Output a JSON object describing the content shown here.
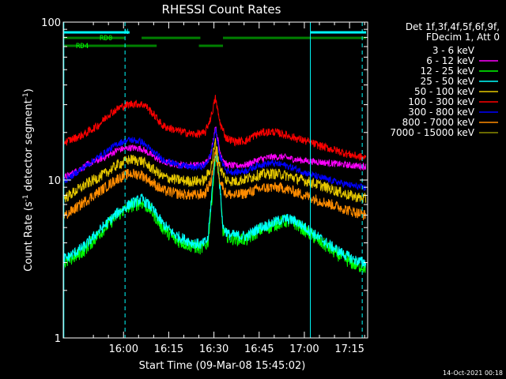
{
  "chart_data": {
    "type": "line",
    "title": "RHESSI Count Rates",
    "xlabel": "Start Time (09-Mar-08 15:45:02)",
    "ylabel_main": "Count Rate (s",
    "ylabel_exp1": "-1",
    "ylabel_mid": " detector segment",
    "ylabel_exp2": "-1",
    "ylabel_end": ")",
    "xlim": [
      -5.0,
      96.0
    ],
    "ylim": [
      1,
      100
    ],
    "yscale": "log",
    "grid": false,
    "x_unit": "minutes from 15:45:00",
    "x_ticks": [
      {
        "v": 15,
        "label": "16:00"
      },
      {
        "v": 30,
        "label": "16:15"
      },
      {
        "v": 45,
        "label": "16:30"
      },
      {
        "v": 60,
        "label": "16:45"
      },
      {
        "v": 75,
        "label": "17:00"
      },
      {
        "v": 90,
        "label": "17:15"
      }
    ],
    "y_ticks": [
      {
        "v": 1,
        "label": "1"
      },
      {
        "v": 10,
        "label": "10"
      },
      {
        "v": 100,
        "label": "100"
      }
    ],
    "legend": {
      "placement": "right",
      "header": [
        "Det 1f,3f,4f,5f,6f,9f,",
        "FDecim 1, Att 0"
      ]
    },
    "series": [
      {
        "name": "3 - 6 keV",
        "color": "#000000",
        "jitter": 0.16,
        "points": [
          [
            -4,
            2.3
          ],
          [
            2,
            3.0
          ],
          [
            8,
            4.3
          ],
          [
            13,
            5.6
          ],
          [
            17,
            6.6
          ],
          [
            21,
            7.0
          ],
          [
            24,
            6.3
          ],
          [
            28,
            4.8
          ],
          [
            32,
            3.9
          ],
          [
            38,
            3.6
          ],
          [
            41,
            3.5
          ],
          [
            43,
            3.7
          ],
          [
            44.5,
            8.0
          ],
          [
            45.5,
            14.0
          ],
          [
            46.5,
            11.0
          ],
          [
            48,
            4.5
          ],
          [
            50,
            4.0
          ],
          [
            56,
            3.9
          ],
          [
            58,
            4.2
          ],
          [
            60,
            4.5
          ],
          [
            63,
            4.6
          ],
          [
            66,
            5.0
          ],
          [
            69,
            5.2
          ],
          [
            72,
            5.0
          ],
          [
            76,
            4.4
          ],
          [
            80,
            3.8
          ],
          [
            84,
            3.3
          ],
          [
            88,
            2.9
          ],
          [
            92,
            2.6
          ],
          [
            95,
            2.4
          ]
        ]
      },
      {
        "name": "6 - 12 keV",
        "color": "#ff00ff",
        "jitter": 0.05,
        "points": [
          [
            -4,
            10.5
          ],
          [
            3,
            12.5
          ],
          [
            9,
            14.0
          ],
          [
            13,
            15.5
          ],
          [
            17,
            16.0
          ],
          [
            21,
            15.8
          ],
          [
            24,
            14.5
          ],
          [
            28,
            13.0
          ],
          [
            33,
            12.5
          ],
          [
            38,
            12.4
          ],
          [
            42,
            12.6
          ],
          [
            44,
            14.5
          ],
          [
            45.5,
            22.0
          ],
          [
            47,
            15.0
          ],
          [
            49,
            12.5
          ],
          [
            52,
            12.3
          ],
          [
            56,
            12.5
          ],
          [
            60,
            13.5
          ],
          [
            64,
            14.0
          ],
          [
            68,
            14.0
          ],
          [
            72,
            13.5
          ],
          [
            76,
            13.2
          ],
          [
            80,
            13.0
          ],
          [
            85,
            12.7
          ],
          [
            90,
            12.4
          ],
          [
            95,
            12.2
          ]
        ]
      },
      {
        "name": "12 - 25 keV",
        "color": "#00ff00",
        "jitter": 0.1,
        "points": [
          [
            -4,
            3.0
          ],
          [
            2,
            3.6
          ],
          [
            8,
            4.8
          ],
          [
            13,
            6.0
          ],
          [
            17,
            6.8
          ],
          [
            21,
            7.2
          ],
          [
            24,
            6.5
          ],
          [
            28,
            5.0
          ],
          [
            32,
            4.2
          ],
          [
            38,
            3.8
          ],
          [
            41,
            3.7
          ],
          [
            43,
            4.0
          ],
          [
            44.5,
            8.5
          ],
          [
            45.5,
            14.5
          ],
          [
            46.5,
            11.5
          ],
          [
            48,
            4.8
          ],
          [
            50,
            4.3
          ],
          [
            56,
            4.2
          ],
          [
            58,
            4.5
          ],
          [
            60,
            4.8
          ],
          [
            63,
            5.0
          ],
          [
            66,
            5.3
          ],
          [
            69,
            5.5
          ],
          [
            72,
            5.3
          ],
          [
            76,
            4.7
          ],
          [
            80,
            4.1
          ],
          [
            84,
            3.6
          ],
          [
            88,
            3.2
          ],
          [
            92,
            2.9
          ],
          [
            95,
            2.8
          ]
        ]
      },
      {
        "name": "25 - 50 keV",
        "color": "#00ffff",
        "jitter": 0.08,
        "points": [
          [
            -4,
            3.2
          ],
          [
            2,
            3.8
          ],
          [
            8,
            5.0
          ],
          [
            13,
            6.2
          ],
          [
            17,
            7.0
          ],
          [
            21,
            7.6
          ],
          [
            24,
            6.8
          ],
          [
            28,
            5.3
          ],
          [
            32,
            4.5
          ],
          [
            38,
            4.0
          ],
          [
            41,
            3.9
          ],
          [
            43,
            4.2
          ],
          [
            44.5,
            9.0
          ],
          [
            45.5,
            15.0
          ],
          [
            46.5,
            12.0
          ],
          [
            48,
            5.0
          ],
          [
            50,
            4.5
          ],
          [
            56,
            4.4
          ],
          [
            58,
            4.7
          ],
          [
            60,
            5.0
          ],
          [
            63,
            5.2
          ],
          [
            66,
            5.5
          ],
          [
            69,
            5.7
          ],
          [
            72,
            5.5
          ],
          [
            76,
            4.9
          ],
          [
            80,
            4.3
          ],
          [
            84,
            3.8
          ],
          [
            88,
            3.4
          ],
          [
            92,
            3.1
          ],
          [
            95,
            3.0
          ]
        ]
      },
      {
        "name": "50 - 100 keV",
        "color": "#e6c700",
        "jitter": 0.08,
        "points": [
          [
            -4,
            7.8
          ],
          [
            3,
            9.5
          ],
          [
            9,
            11.0
          ],
          [
            13,
            12.5
          ],
          [
            17,
            13.5
          ],
          [
            21,
            13.2
          ],
          [
            24,
            12.0
          ],
          [
            28,
            10.5
          ],
          [
            33,
            10.0
          ],
          [
            38,
            9.8
          ],
          [
            42,
            10.0
          ],
          [
            44,
            12.0
          ],
          [
            45.5,
            17.5
          ],
          [
            47,
            12.0
          ],
          [
            49,
            10.0
          ],
          [
            52,
            9.8
          ],
          [
            56,
            10.2
          ],
          [
            60,
            10.8
          ],
          [
            64,
            11.0
          ],
          [
            68,
            10.8
          ],
          [
            72,
            10.3
          ],
          [
            76,
            9.8
          ],
          [
            80,
            9.3
          ],
          [
            85,
            8.6
          ],
          [
            90,
            8.0
          ],
          [
            95,
            7.6
          ]
        ]
      },
      {
        "name": "100 - 300 keV",
        "color": "#ff0000",
        "jitter": 0.06,
        "points": [
          [
            -4,
            17.5
          ],
          [
            2,
            19.5
          ],
          [
            7,
            22.5
          ],
          [
            10,
            26.0
          ],
          [
            14,
            29.0
          ],
          [
            18,
            30.5
          ],
          [
            22,
            30.0
          ],
          [
            25,
            26.0
          ],
          [
            28,
            22.0
          ],
          [
            33,
            20.5
          ],
          [
            38,
            19.5
          ],
          [
            42,
            19.8
          ],
          [
            44,
            25.0
          ],
          [
            45.5,
            33.0
          ],
          [
            47,
            23.0
          ],
          [
            49,
            18.5
          ],
          [
            52,
            17.5
          ],
          [
            56,
            17.8
          ],
          [
            58,
            19.0
          ],
          [
            61,
            20.0
          ],
          [
            65,
            20.2
          ],
          [
            68,
            19.5
          ],
          [
            72,
            18.5
          ],
          [
            76,
            17.5
          ],
          [
            80,
            16.5
          ],
          [
            85,
            15.5
          ],
          [
            90,
            14.5
          ],
          [
            95,
            13.8
          ]
        ]
      },
      {
        "name": "300 - 800 keV",
        "color": "#0000ff",
        "jitter": 0.05,
        "points": [
          [
            -4,
            10.0
          ],
          [
            3,
            12.5
          ],
          [
            9,
            15.0
          ],
          [
            13,
            17.0
          ],
          [
            17,
            18.0
          ],
          [
            21,
            17.5
          ],
          [
            24,
            15.5
          ],
          [
            28,
            13.5
          ],
          [
            33,
            12.5
          ],
          [
            38,
            12.0
          ],
          [
            42,
            12.3
          ],
          [
            44,
            14.5
          ],
          [
            45.5,
            21.0
          ],
          [
            47,
            14.0
          ],
          [
            49,
            11.5
          ],
          [
            52,
            11.2
          ],
          [
            56,
            11.5
          ],
          [
            60,
            12.5
          ],
          [
            64,
            12.8
          ],
          [
            68,
            12.5
          ],
          [
            72,
            11.8
          ],
          [
            76,
            11.0
          ],
          [
            80,
            10.4
          ],
          [
            85,
            9.8
          ],
          [
            90,
            9.3
          ],
          [
            95,
            8.9
          ]
        ]
      },
      {
        "name": "800 - 7000 keV",
        "color": "#ff8c00",
        "jitter": 0.08,
        "points": [
          [
            -4,
            6.0
          ],
          [
            3,
            7.5
          ],
          [
            9,
            9.0
          ],
          [
            13,
            10.2
          ],
          [
            17,
            11.0
          ],
          [
            21,
            10.8
          ],
          [
            24,
            9.8
          ],
          [
            28,
            8.6
          ],
          [
            33,
            8.2
          ],
          [
            38,
            8.0
          ],
          [
            42,
            8.2
          ],
          [
            44,
            9.8
          ],
          [
            45.5,
            15.0
          ],
          [
            47,
            10.0
          ],
          [
            49,
            8.2
          ],
          [
            52,
            8.0
          ],
          [
            56,
            8.3
          ],
          [
            60,
            8.8
          ],
          [
            64,
            9.0
          ],
          [
            68,
            8.9
          ],
          [
            72,
            8.4
          ],
          [
            76,
            7.9
          ],
          [
            80,
            7.4
          ],
          [
            85,
            6.9
          ],
          [
            90,
            6.4
          ],
          [
            95,
            6.0
          ]
        ]
      },
      {
        "name": "7000 - 15000 keV",
        "color": "#8c8c00",
        "jitter": 0.04,
        "points": []
      }
    ],
    "dashed_vlines": [
      15.5,
      94.2
    ],
    "solid_vlines": [
      -4.8,
      77.0
    ],
    "flag_bars": [
      {
        "row": 1,
        "color": "#00ffff",
        "label": "N",
        "segments": [
          [
            -4.8,
            17.0
          ],
          [
            77.0,
            95.5
          ]
        ]
      },
      {
        "row": 2,
        "color": "#008000",
        "label": "RD0",
        "segments": [
          [
            -4.8,
            15.5
          ],
          [
            21.0,
            40.5
          ],
          [
            48.0,
            95.5
          ]
        ]
      },
      {
        "row": 3,
        "color": "#008000",
        "label": "RD4",
        "segments": [
          [
            -4.8,
            15.5
          ],
          [
            15.5,
            26.0
          ],
          [
            40.0,
            48.0
          ]
        ]
      }
    ],
    "flag_labels": {
      "N": "N",
      "RD0": "RD0",
      "RD4": "RD4"
    }
  },
  "footer": {
    "timestamp": "14-Oct-2021 00:18"
  }
}
